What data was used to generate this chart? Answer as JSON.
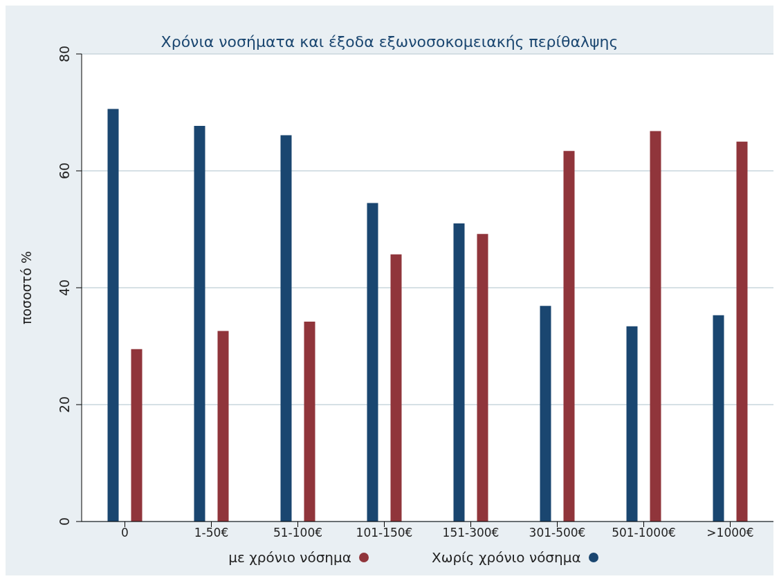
{
  "chart_data": {
    "type": "bar",
    "title": "Χρόνια νοσήματα και έξοδα εξωνοσοκομειακής περίθαλψης",
    "ylabel": "ποσοστό %",
    "categories": [
      "0",
      "1-50€",
      "51-100€",
      "101-150€",
      "151-300€",
      "301-500€",
      "501-1000€",
      ">1000€"
    ],
    "series": [
      {
        "name": "Χωρίς χρόνιο νόσημα",
        "color": "#1a4670",
        "values": [
          70.6,
          67.7,
          66.1,
          54.5,
          51.0,
          36.9,
          33.4,
          35.3
        ]
      },
      {
        "name": "με χρόνιο νόσημα",
        "color": "#90353b",
        "values": [
          29.5,
          32.6,
          34.2,
          45.7,
          49.2,
          63.4,
          66.8,
          65.0
        ]
      }
    ],
    "ylim": [
      0,
      80
    ],
    "yticks": [
      0,
      20,
      40,
      60,
      80
    ],
    "grid": "y",
    "legend": "bottom"
  }
}
